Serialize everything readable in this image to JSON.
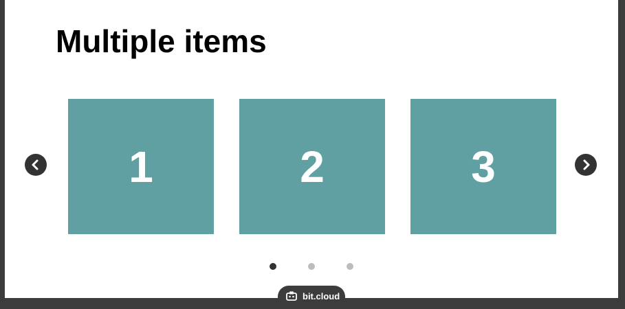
{
  "page": {
    "title": "Multiple items"
  },
  "carousel": {
    "slides": [
      {
        "label": "1"
      },
      {
        "label": "2"
      },
      {
        "label": "3"
      }
    ],
    "prev_icon": "chevron-left-icon",
    "next_icon": "chevron-right-icon",
    "dots_count": 3,
    "active_dot": 1
  },
  "badge": {
    "label": "bit.cloud",
    "icon": "bit-logo-icon"
  },
  "colors": {
    "slide_bg": "#61a0a2",
    "slide_text": "#ffffff",
    "arrow_bg": "#333333",
    "dot_active": "#333333",
    "dot_inactive": "#bdbdbd",
    "badge_bg": "#3c3c3c"
  }
}
